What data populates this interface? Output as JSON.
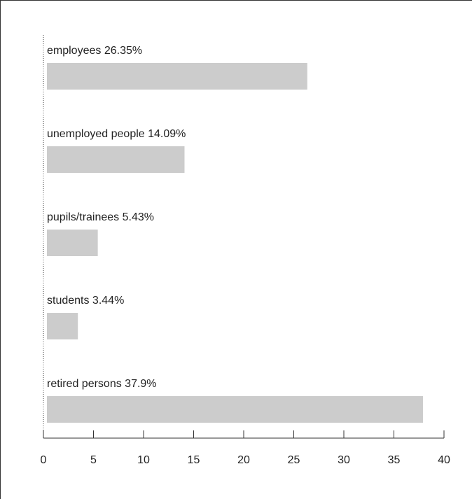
{
  "chart_data": {
    "type": "bar",
    "orientation": "horizontal",
    "categories": [
      "employees",
      "unemployed people",
      "pupils/trainees",
      "students",
      "retired persons"
    ],
    "values": [
      26.35,
      14.09,
      5.43,
      3.44,
      37.9
    ],
    "labels": [
      "employees  26.35%",
      "unemployed people 14.09%",
      "pupils/trainees  5.43%",
      "students  3.44%",
      "retired persons  37.9%"
    ],
    "xlim": [
      0,
      40
    ],
    "ticks": [
      0,
      5,
      10,
      15,
      20,
      25,
      30,
      35,
      40
    ],
    "tick_labels": [
      "0",
      "5",
      "10",
      "15",
      "20",
      "25",
      "30",
      "35",
      "40"
    ],
    "grid": false,
    "bar_color": "#cccccc"
  }
}
